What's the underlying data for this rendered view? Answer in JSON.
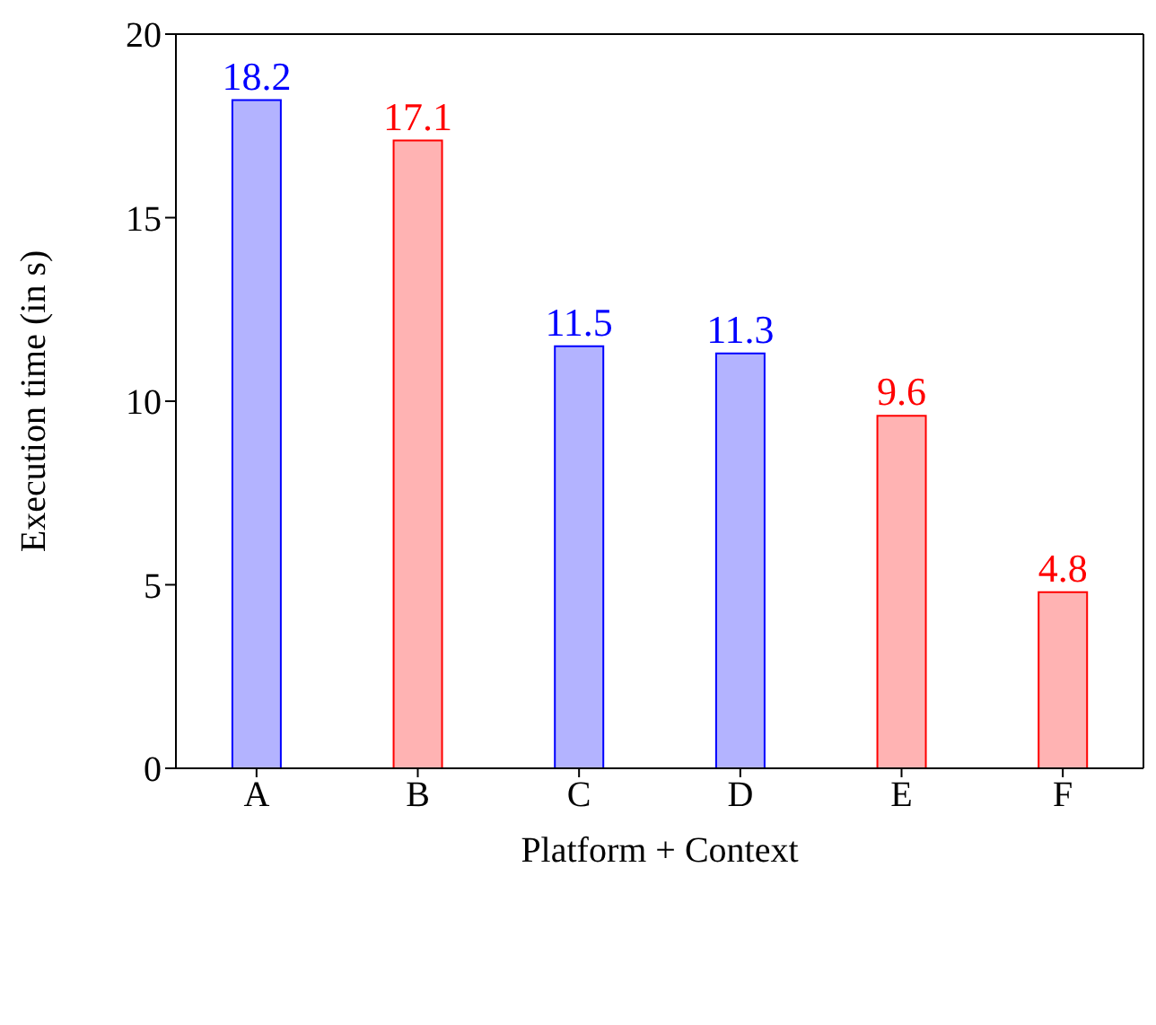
{
  "chart_data": {
    "type": "bar",
    "xlabel": "Platform + Context",
    "ylabel": "Execution time (in s)",
    "categories": [
      "A",
      "B",
      "C",
      "D",
      "E",
      "F"
    ],
    "values": [
      18.2,
      17.1,
      11.5,
      11.3,
      9.6,
      4.8
    ],
    "colors": [
      "#b3b3ff",
      "#ffb3b3",
      "#b3b3ff",
      "#b3b3ff",
      "#ffb3b3",
      "#ffb3b3"
    ],
    "ylim": [
      0,
      20
    ],
    "yticks": [
      0,
      5,
      10,
      15,
      20
    ],
    "data_labels": true
  }
}
